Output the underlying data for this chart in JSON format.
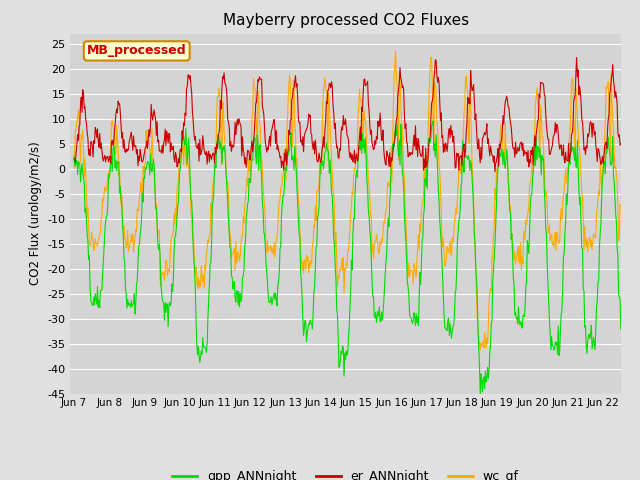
{
  "title": "Mayberry processed CO2 Fluxes",
  "ylabel": "CO2 Flux (urology/m2/s)",
  "ylim": [
    -45,
    27
  ],
  "yticks": [
    -45,
    -40,
    -35,
    -30,
    -25,
    -20,
    -15,
    -10,
    -5,
    0,
    5,
    10,
    15,
    20,
    25
  ],
  "xtick_labels": [
    "Jun 7",
    "Jun 8",
    "Jun 9",
    "Jun 10",
    "Jun 11",
    "Jun 12",
    "Jun 13",
    "Jun 14",
    "Jun 15",
    "Jun 16",
    "Jun 17",
    "Jun 18",
    "Jun 19",
    "Jun 20",
    "Jun 21",
    "Jun 22"
  ],
  "fig_bg_color": "#e0e0e0",
  "plot_bg_color": "#d4d4d4",
  "grid_color": "#ffffff",
  "line_green": "#00dd00",
  "line_red": "#cc0000",
  "line_orange": "#ffaa00",
  "legend_label": "MB_processed",
  "legend_bg": "#ffffcc",
  "legend_border": "#cc8800",
  "legend_text_color": "#cc0000",
  "series_labels": [
    "gpp_ANNnight",
    "er_ANNnight",
    "wc_gf"
  ],
  "series_colors": [
    "#00dd00",
    "#cc0000",
    "#ffaa00"
  ]
}
